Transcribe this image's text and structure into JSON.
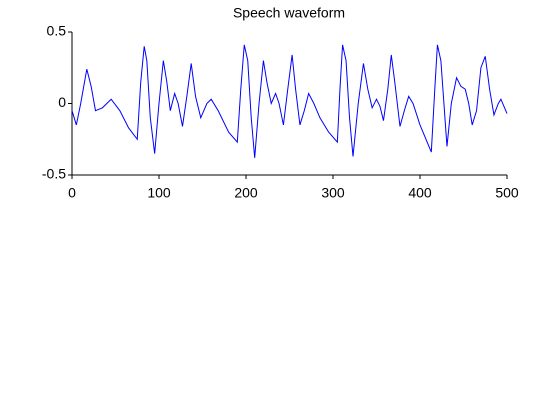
{
  "chart_data": {
    "type": "line",
    "title": "Speech waveform",
    "x": [
      0,
      5,
      10,
      17,
      22,
      27,
      35,
      45,
      55,
      65,
      75,
      79,
      83,
      86,
      90,
      95,
      100,
      105,
      109,
      113,
      118,
      122,
      127,
      132,
      137,
      142,
      148,
      155,
      160,
      168,
      180,
      190,
      194,
      198,
      202,
      206,
      210,
      215,
      220,
      224,
      229,
      234,
      238,
      243,
      248,
      253,
      257,
      262,
      267,
      272,
      278,
      285,
      295,
      305,
      308,
      311,
      315,
      319,
      323,
      329,
      335,
      340,
      345,
      350,
      354,
      358,
      363,
      367,
      371,
      377,
      382,
      387,
      392,
      400,
      413,
      417,
      420,
      424,
      431,
      436,
      442,
      447,
      452,
      456,
      460,
      465,
      470,
      475,
      480,
      485,
      490,
      493,
      500
    ],
    "series": [
      {
        "name": null,
        "color": "#0000ff",
        "values": [
          -0.05,
          -0.15,
          0.0,
          0.24,
          0.12,
          -0.05,
          -0.03,
          0.03,
          -0.05,
          -0.17,
          -0.25,
          0.15,
          0.4,
          0.3,
          -0.1,
          -0.35,
          0.0,
          0.3,
          0.15,
          -0.05,
          0.07,
          0.0,
          -0.16,
          0.05,
          0.28,
          0.05,
          -0.1,
          0.0,
          0.03,
          -0.05,
          -0.2,
          -0.27,
          0.1,
          0.41,
          0.3,
          -0.1,
          -0.38,
          0.0,
          0.3,
          0.15,
          0.0,
          0.07,
          0.0,
          -0.15,
          0.1,
          0.34,
          0.1,
          -0.15,
          -0.05,
          0.07,
          0.0,
          -0.1,
          -0.2,
          -0.27,
          0.1,
          0.41,
          0.3,
          -0.1,
          -0.37,
          0.0,
          0.28,
          0.1,
          -0.03,
          0.03,
          -0.02,
          -0.12,
          0.1,
          0.34,
          0.15,
          -0.16,
          -0.05,
          0.05,
          0.0,
          -0.15,
          -0.34,
          0.1,
          0.41,
          0.3,
          -0.3,
          0.0,
          0.18,
          0.12,
          0.1,
          0.0,
          -0.15,
          -0.05,
          0.25,
          0.33,
          0.1,
          -0.08,
          0.0,
          0.03,
          -0.07
        ]
      }
    ],
    "xlim": [
      0,
      500
    ],
    "xticks": [
      0,
      100,
      200,
      300,
      400,
      500
    ],
    "ylim": [
      -0.5,
      0.5
    ],
    "yticks": [
      -0.5,
      0,
      0.5
    ],
    "grid": false
  }
}
